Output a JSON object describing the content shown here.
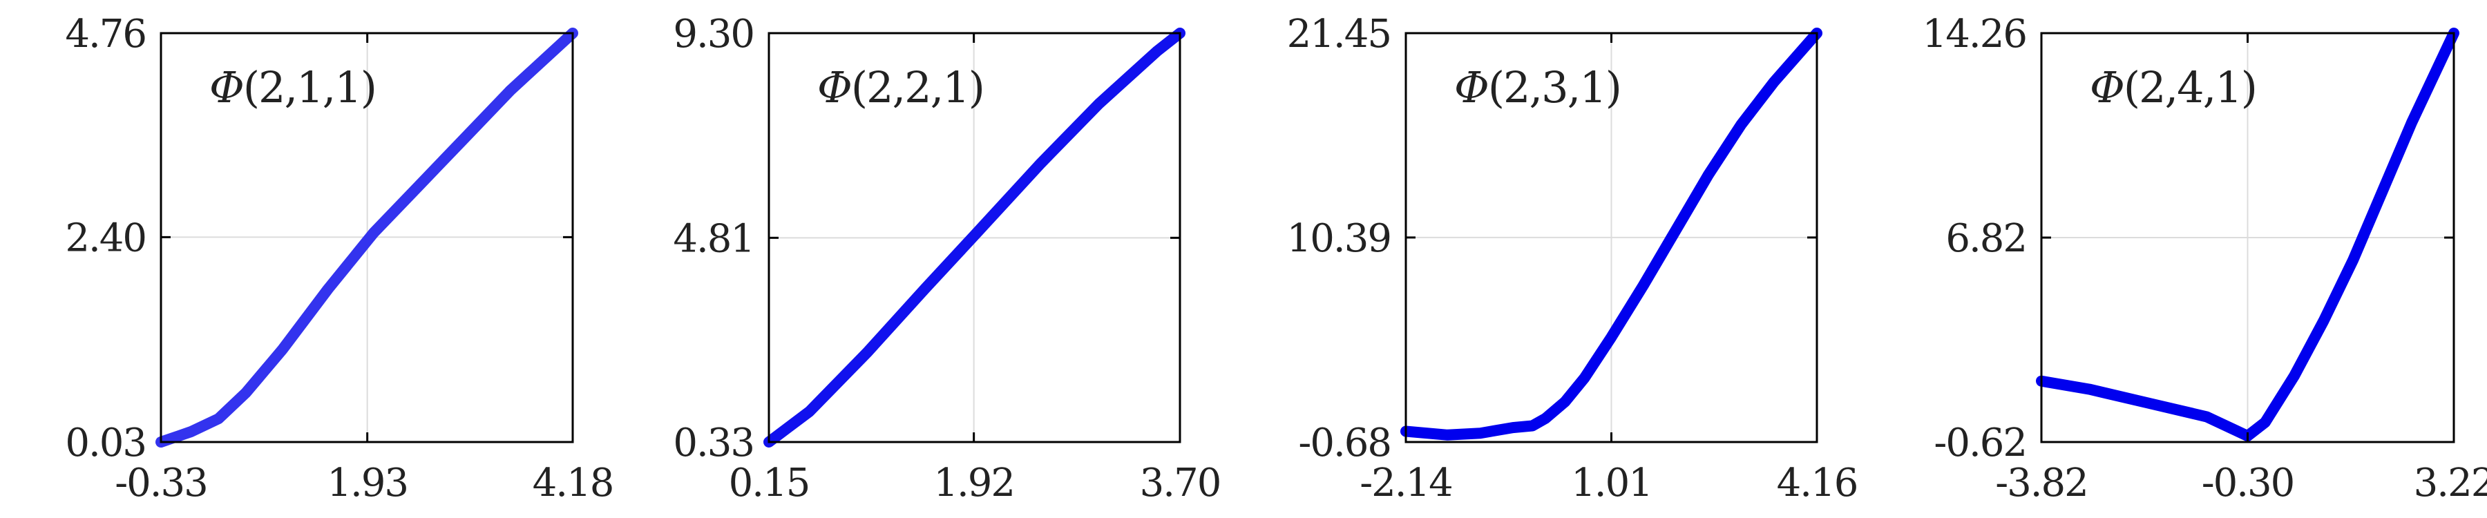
{
  "chart_data": [
    {
      "type": "line",
      "title": "Φ(2,1,1)",
      "xticks": [
        "-0.33",
        "1.93",
        "4.18"
      ],
      "yticks": [
        "0.03",
        "2.40",
        "4.76"
      ],
      "xlim": [
        -0.33,
        4.18
      ],
      "ylim": [
        0.03,
        4.76
      ],
      "grid": true,
      "color": "#3333ee",
      "series": [
        {
          "x": [
            -0.33,
            0.0,
            0.3,
            0.6,
            1.0,
            1.5,
            2.0,
            2.5,
            3.0,
            3.5,
            4.18
          ],
          "y": [
            0.03,
            0.15,
            0.3,
            0.6,
            1.1,
            1.8,
            2.45,
            3.0,
            3.55,
            4.1,
            4.76
          ]
        }
      ]
    },
    {
      "type": "line",
      "title": "Φ(2,2,1)",
      "xticks": [
        "0.15",
        "1.92",
        "3.70"
      ],
      "yticks": [
        "0.33",
        "4.81",
        "9.30"
      ],
      "xlim": [
        0.15,
        3.7
      ],
      "ylim": [
        0.33,
        9.3
      ],
      "grid": true,
      "color": "#1111ee",
      "series": [
        {
          "x": [
            0.15,
            0.5,
            1.0,
            1.5,
            1.92,
            2.5,
            3.0,
            3.5,
            3.7
          ],
          "y": [
            0.33,
            1.0,
            2.3,
            3.7,
            4.85,
            6.45,
            7.75,
            8.9,
            9.3
          ]
        }
      ]
    },
    {
      "type": "line",
      "title": "Φ(2,3,1)",
      "xticks": [
        "-2.14",
        "1.01",
        "4.16"
      ],
      "yticks": [
        "-0.68",
        "10.39",
        "21.45"
      ],
      "xlim": [
        -2.14,
        4.16
      ],
      "ylim": [
        -0.68,
        21.45
      ],
      "grid": true,
      "color": "#0000ee",
      "series": [
        {
          "x": [
            -2.14,
            -1.5,
            -1.0,
            -0.5,
            -0.2,
            0.0,
            0.3,
            0.6,
            1.01,
            1.5,
            2.0,
            2.5,
            3.0,
            3.5,
            4.16
          ],
          "y": [
            -0.1,
            -0.3,
            -0.2,
            0.1,
            0.2,
            0.6,
            1.5,
            2.8,
            5.0,
            7.8,
            10.8,
            13.8,
            16.5,
            18.8,
            21.45
          ]
        }
      ]
    },
    {
      "type": "line",
      "title": "Φ(2,4,1)",
      "xticks": [
        "-3.82",
        "-0.30",
        "3.22"
      ],
      "yticks": [
        "-0.62",
        "6.82",
        "14.26"
      ],
      "xlim": [
        -3.82,
        3.22
      ],
      "ylim": [
        -0.62,
        14.26
      ],
      "grid": true,
      "color": "#0000ee",
      "series": [
        {
          "x": [
            -3.82,
            -3.0,
            -2.0,
            -1.0,
            -0.5,
            -0.3,
            0.0,
            0.5,
            1.0,
            1.5,
            2.0,
            2.5,
            3.22
          ],
          "y": [
            1.6,
            1.3,
            0.8,
            0.3,
            -0.2,
            -0.4,
            0.1,
            1.8,
            3.8,
            6.0,
            8.5,
            11.0,
            14.26
          ]
        }
      ]
    }
  ]
}
